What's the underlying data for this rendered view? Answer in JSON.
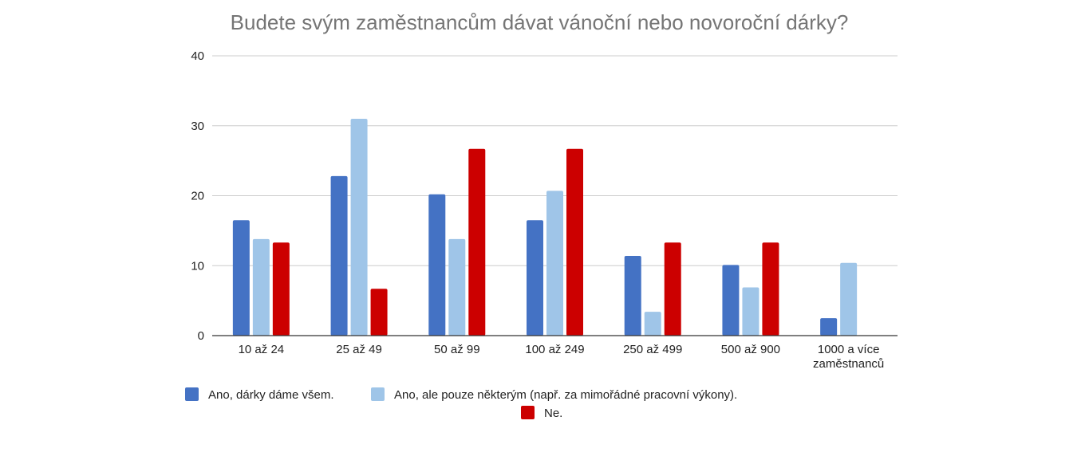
{
  "chart_data": {
    "type": "bar",
    "title": "Budete svým zaměstnancům dávat vánoční nebo novoroční dárky?",
    "categories": [
      [
        "10 až 24"
      ],
      [
        "25 až 49"
      ],
      [
        "50 až 99"
      ],
      [
        "100 až 249"
      ],
      [
        "250 až 499"
      ],
      [
        "500 až 900"
      ],
      [
        "1000 a více",
        "zaměstnanců"
      ]
    ],
    "series": [
      {
        "name": "Ano, dárky dáme všem.",
        "color": "#4472c4",
        "values": [
          16.5,
          22.8,
          20.2,
          16.5,
          11.4,
          10.1,
          2.5
        ]
      },
      {
        "name": "Ano, ale pouze některým (např. za mimořádné pracovní výkony).",
        "color": "#9fc5e8",
        "values": [
          13.8,
          31.0,
          13.8,
          20.7,
          3.4,
          6.9,
          10.4
        ]
      },
      {
        "name": "Ne.",
        "color": "#cc0000",
        "values": [
          13.3,
          6.7,
          26.7,
          26.7,
          13.3,
          13.3,
          0
        ]
      }
    ],
    "ylim": [
      0,
      40
    ],
    "yticks": [
      0,
      10,
      20,
      30,
      40
    ],
    "grid": true,
    "legend_position": "bottom"
  }
}
